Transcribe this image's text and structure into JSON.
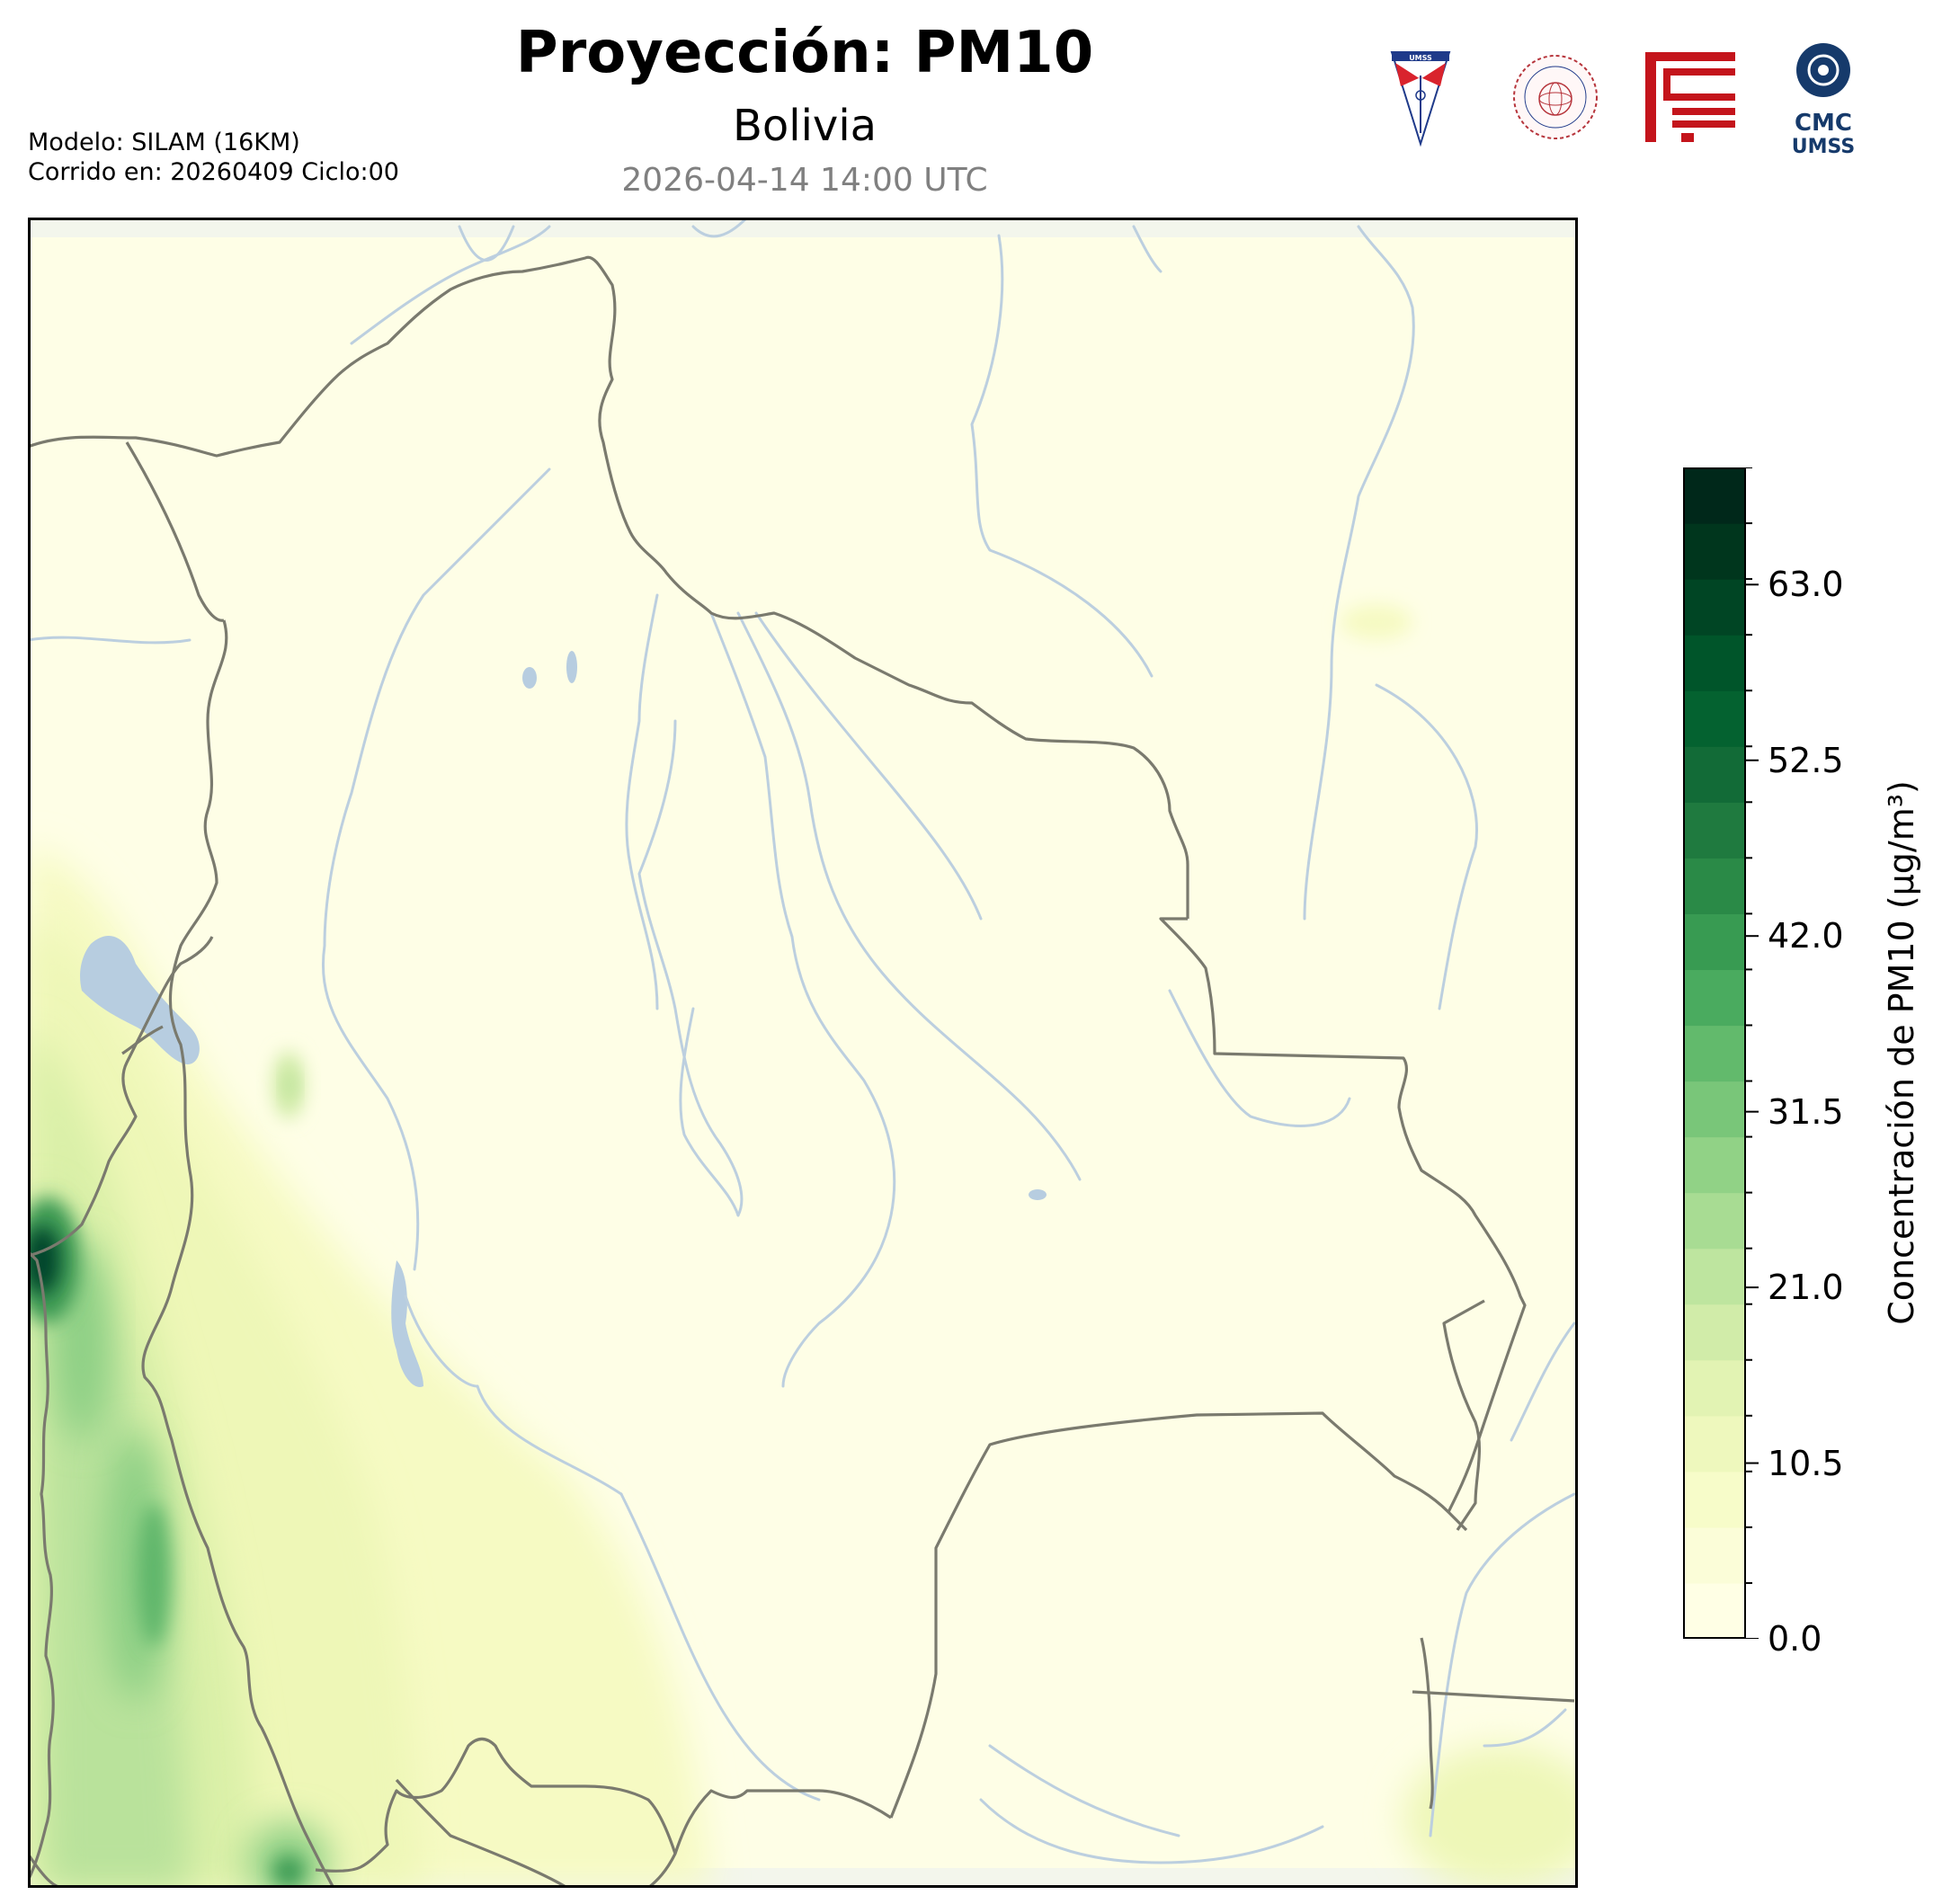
{
  "header": {
    "title": "Proyección: PM10",
    "subtitle": "Bolivia",
    "datetime": "2026-04-14 14:00 UTC",
    "model_line": "Modelo: SILAM (16KM)",
    "run_line": "Corrido en: 20260409 Ciclo:00"
  },
  "logos": [
    {
      "name": "umss-shield-logo",
      "text": "UMSS"
    },
    {
      "name": "departamento-fisica-seal",
      "text": "DEPARTAMENTO DE FÍSICA"
    },
    {
      "name": "red-geometric-logo",
      "text": ""
    },
    {
      "name": "cmc-umss-logo",
      "text": "CMC UMSS"
    }
  ],
  "colorbar": {
    "label": "Concentración de PM10 (µg/m³)",
    "ticks": [
      "0.0",
      "10.5",
      "21.0",
      "31.5",
      "42.0",
      "52.5",
      "63.0"
    ],
    "tick_values": [
      0,
      10.5,
      21,
      31.5,
      42,
      52.5,
      63
    ],
    "min": 0,
    "max": 70,
    "colors": [
      "#ffffe5",
      "#fbfdd8",
      "#f7fcc9",
      "#eef8bd",
      "#e2f3b3",
      "#d1eca9",
      "#bee59f",
      "#a8dc93",
      "#91d286",
      "#79c679",
      "#62ba6c",
      "#4aab5f",
      "#389b52",
      "#2a8a47",
      "#1f7a3f",
      "#126b37",
      "#046230",
      "#00552a",
      "#004524",
      "#00361d",
      "#00281a"
    ]
  },
  "map": {
    "region": "Bolivia",
    "colors": {
      "background": "#ffffe5",
      "border": "#7a7a6e",
      "rivers": "#b7cde0",
      "lakes": "#b7cde0"
    }
  }
}
